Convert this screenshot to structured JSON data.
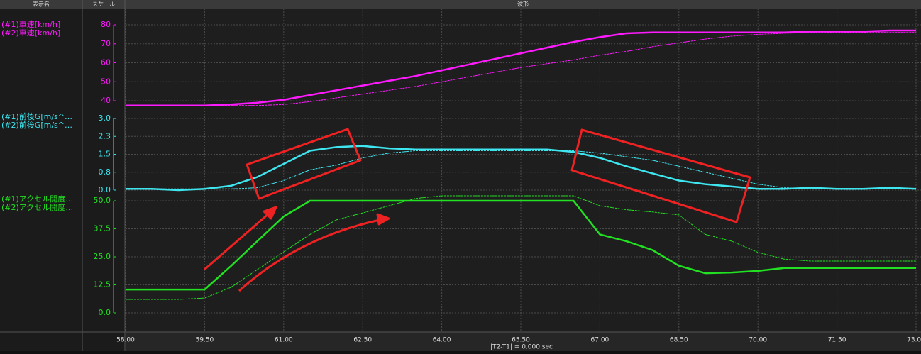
{
  "header": [
    "表示名",
    "スケール",
    "波形"
  ],
  "footer": "|T2-T1| = 0.000 sec",
  "chart_data": [
    {
      "type": "line",
      "xlim": [
        58,
        73
      ],
      "ylim": [
        40,
        80
      ],
      "yticks": [
        40,
        50,
        60,
        70,
        80
      ],
      "grid": true,
      "x": [
        58,
        58.5,
        59,
        59.5,
        60,
        60.5,
        61,
        61.5,
        62,
        62.5,
        63,
        63.5,
        64,
        64.5,
        65,
        65.5,
        66,
        66.5,
        67,
        67.5,
        68,
        68.5,
        69,
        69.5,
        70,
        70.5,
        71,
        71.5,
        72,
        72.5,
        73
      ],
      "series": [
        {
          "name": "(#1)車速[km/h]",
          "color": "#ff1aff",
          "values": [
            37.5,
            37.5,
            37.5,
            37.5,
            38,
            39,
            40.5,
            43,
            45.5,
            48,
            50.5,
            53,
            56,
            59,
            62,
            65,
            68,
            71,
            73.5,
            75.5,
            76,
            76,
            76,
            76,
            76,
            76,
            76.5,
            76.5,
            76.5,
            77,
            77
          ]
        },
        {
          "name": "(#2)車速[km/h]",
          "color": "#ff1aff",
          "values": [
            37.5,
            37.5,
            37.5,
            37.5,
            37.5,
            37.5,
            38,
            39.5,
            41.5,
            43.5,
            45.5,
            47.5,
            50,
            52.5,
            55,
            57.5,
            59.5,
            61.5,
            64,
            66,
            68.5,
            70.5,
            72.5,
            74,
            75,
            75.5,
            76,
            76,
            76,
            76,
            76
          ]
        }
      ]
    },
    {
      "type": "line",
      "xlim": [
        58,
        73
      ],
      "ylim": [
        0,
        3
      ],
      "grid": true,
      "yticks": [
        {
          "value": 0,
          "label": "0.0"
        },
        {
          "value": 0.75,
          "label": "0.8"
        },
        {
          "value": 1.5,
          "label": "1.5"
        },
        {
          "value": 2.25,
          "label": "2.3"
        },
        {
          "value": 3,
          "label": "3.0"
        }
      ],
      "x": [
        58,
        58.5,
        59,
        59.5,
        60,
        60.5,
        61,
        61.5,
        62,
        62.5,
        63,
        63.5,
        64,
        64.5,
        65,
        65.5,
        66,
        66.5,
        67,
        67.5,
        68,
        68.5,
        69,
        69.5,
        70,
        70.5,
        71,
        71.5,
        72,
        72.5,
        73
      ],
      "series": [
        {
          "name": "(#1)前後G[m/s^…",
          "color": "#3ee6f0",
          "values": [
            0.05,
            0.05,
            0,
            0.05,
            0.18,
            0.55,
            1.1,
            1.65,
            1.8,
            1.85,
            1.75,
            1.7,
            1.7,
            1.7,
            1.7,
            1.7,
            1.7,
            1.6,
            1.35,
            1,
            0.7,
            0.4,
            0.25,
            0.15,
            0.05,
            0.05,
            0.1,
            0.05,
            0.05,
            0.1,
            0.05
          ]
        },
        {
          "name": "(#2)前後G[m/s^…",
          "color": "#3ee6f0",
          "values": [
            0.05,
            0.05,
            0.05,
            0.05,
            0.05,
            0.1,
            0.4,
            0.85,
            1.05,
            1.35,
            1.55,
            1.65,
            1.65,
            1.65,
            1.65,
            1.65,
            1.65,
            1.65,
            1.55,
            1.4,
            1.25,
            1,
            0.75,
            0.5,
            0.25,
            0.1,
            0.05,
            0.05,
            0.05,
            0.05,
            0.05
          ]
        }
      ]
    },
    {
      "type": "line",
      "xlim": [
        58,
        73
      ],
      "ylim": [
        0,
        50
      ],
      "grid": true,
      "yticks": [
        {
          "value": 0,
          "label": "0.0"
        },
        12.5,
        {
          "value": 25,
          "label": "25.0"
        },
        37.5,
        {
          "value": 50,
          "label": "50.0"
        }
      ],
      "xticks": [
        {
          "value": 58,
          "label": "58.00"
        },
        {
          "value": 59.5,
          "label": "59.50"
        },
        {
          "value": 61,
          "label": "61.00"
        },
        {
          "value": 62.5,
          "label": "62.50"
        },
        {
          "value": 64,
          "label": "64.00"
        },
        {
          "value": 65.5,
          "label": "65.50"
        },
        {
          "value": 67,
          "label": "67.00"
        },
        {
          "value": 68.5,
          "label": "68.50"
        },
        {
          "value": 70,
          "label": "70.00"
        },
        {
          "value": 71.5,
          "label": "71.50"
        },
        {
          "value": 73,
          "label": "73.00"
        }
      ],
      "x": [
        58,
        58.5,
        59,
        59.5,
        60,
        60.5,
        61,
        61.5,
        62,
        62.5,
        63,
        63.5,
        64,
        64.5,
        65,
        65.5,
        66,
        66.5,
        67,
        67.5,
        68,
        68.5,
        69,
        69.5,
        70,
        70.5,
        71,
        71.5,
        72,
        72.5,
        73
      ],
      "series": [
        {
          "name": "(#1)アクセル開度…",
          "color": "#22e022",
          "values": [
            10.4,
            10.4,
            10.4,
            10.4,
            20.9,
            32,
            43,
            50,
            50,
            50,
            50,
            50,
            50,
            50,
            50,
            50,
            50,
            50,
            35,
            32,
            28,
            21,
            17.7,
            18,
            18.7,
            20,
            20,
            20,
            20,
            20,
            20
          ]
        },
        {
          "name": "(#2)アクセル開度…",
          "color": "#22e022",
          "values": [
            6,
            6,
            6,
            6.6,
            11.4,
            19.3,
            27.2,
            35,
            41.5,
            44.6,
            47.8,
            51,
            52.2,
            52.2,
            52.2,
            52.2,
            52.2,
            52.2,
            47.8,
            46,
            45,
            43.7,
            35,
            32,
            27,
            24,
            23.1,
            23.1,
            23.1,
            23.1,
            23.1
          ]
        }
      ]
    }
  ]
}
